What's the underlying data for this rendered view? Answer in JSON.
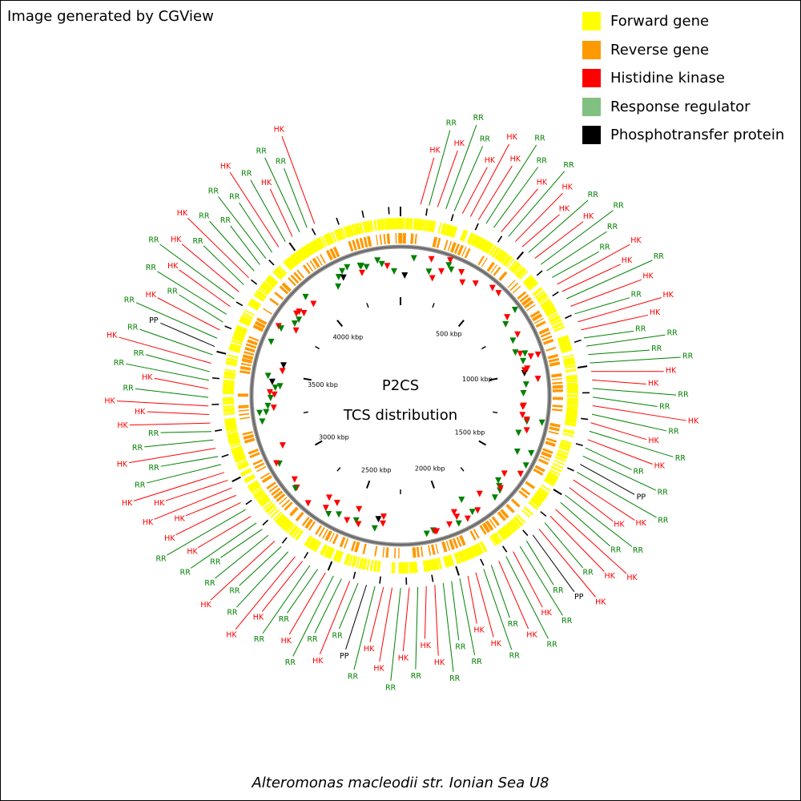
{
  "header": {
    "text": "Image generated by CGView"
  },
  "legend": [
    {
      "label": "Forward gene",
      "color": "#ffff00"
    },
    {
      "label": "Reverse gene",
      "color": "#ff9900"
    },
    {
      "label": "Histidine kinase",
      "color": "#ff0000"
    },
    {
      "label": "Response regulator",
      "color": "#80c080"
    },
    {
      "label": "Phosphotransfer protein",
      "color": "#000000"
    }
  ],
  "center": {
    "title": "P2CS",
    "subtitle": "TCS distribution"
  },
  "footer": {
    "organism": "Alteromonas macleodii str. Ionian Sea U8"
  },
  "genome": {
    "ruler_labels": [
      "500 kbp",
      "1000 kbp",
      "1500 kbp",
      "2000 kbp",
      "2500 kbp",
      "3000 kbp",
      "3500 kbp",
      "4000 kbp"
    ],
    "label_colors": {
      "HK": "#ff0000",
      "RR": "#008000",
      "PP": "#000000"
    },
    "feature_labels": [
      "HK",
      "RR",
      "HK",
      "RR",
      "RR",
      "HK",
      "HK",
      "HK",
      "RR",
      "RR",
      "HK",
      "RR",
      "HK",
      "HK",
      "RR",
      "HK",
      "RR",
      "RR",
      "RR",
      "HK",
      "HK",
      "RR",
      "HK",
      "RR",
      "HK",
      "HK",
      "RR",
      "RR",
      "RR",
      "RR",
      "HK",
      "HK",
      "RR",
      "RR",
      "HK",
      "RR",
      "HK",
      "RR",
      "HK",
      "RR",
      "RR",
      "PP",
      "RR",
      "HK",
      "HK",
      "RR",
      "RR",
      "HK",
      "HK",
      "RR",
      "HK",
      "PP",
      "RR",
      "RR",
      "HK",
      "RR",
      "HK",
      "RR",
      "RR",
      "HK",
      "HK",
      "RR",
      "RR",
      "RR",
      "HK",
      "HK",
      "RR",
      "HK",
      "RR",
      "HK",
      "HK",
      "RR",
      "PP",
      "RR",
      "HK",
      "RR",
      "RR",
      "HK",
      "RR",
      "RR",
      "HK",
      "HK",
      "RR",
      "RR",
      "HK",
      "RR",
      "RR",
      "RR",
      "HK",
      "RR",
      "HK",
      "HK",
      "HK",
      "HK",
      "HK",
      "RR",
      "RR",
      "HK",
      "RR",
      "RR",
      "HK",
      "HK",
      "HK",
      "RR",
      "HK",
      "RR",
      "RR",
      "HK",
      "RR",
      "PP",
      "RR",
      "HK",
      "RR",
      "RR",
      "HK",
      "RR",
      "HK",
      "RR",
      "HK",
      "RR",
      "RR",
      "RR",
      "RR",
      "HK",
      "RR",
      "HK",
      "RR",
      "RR",
      "HK"
    ]
  }
}
